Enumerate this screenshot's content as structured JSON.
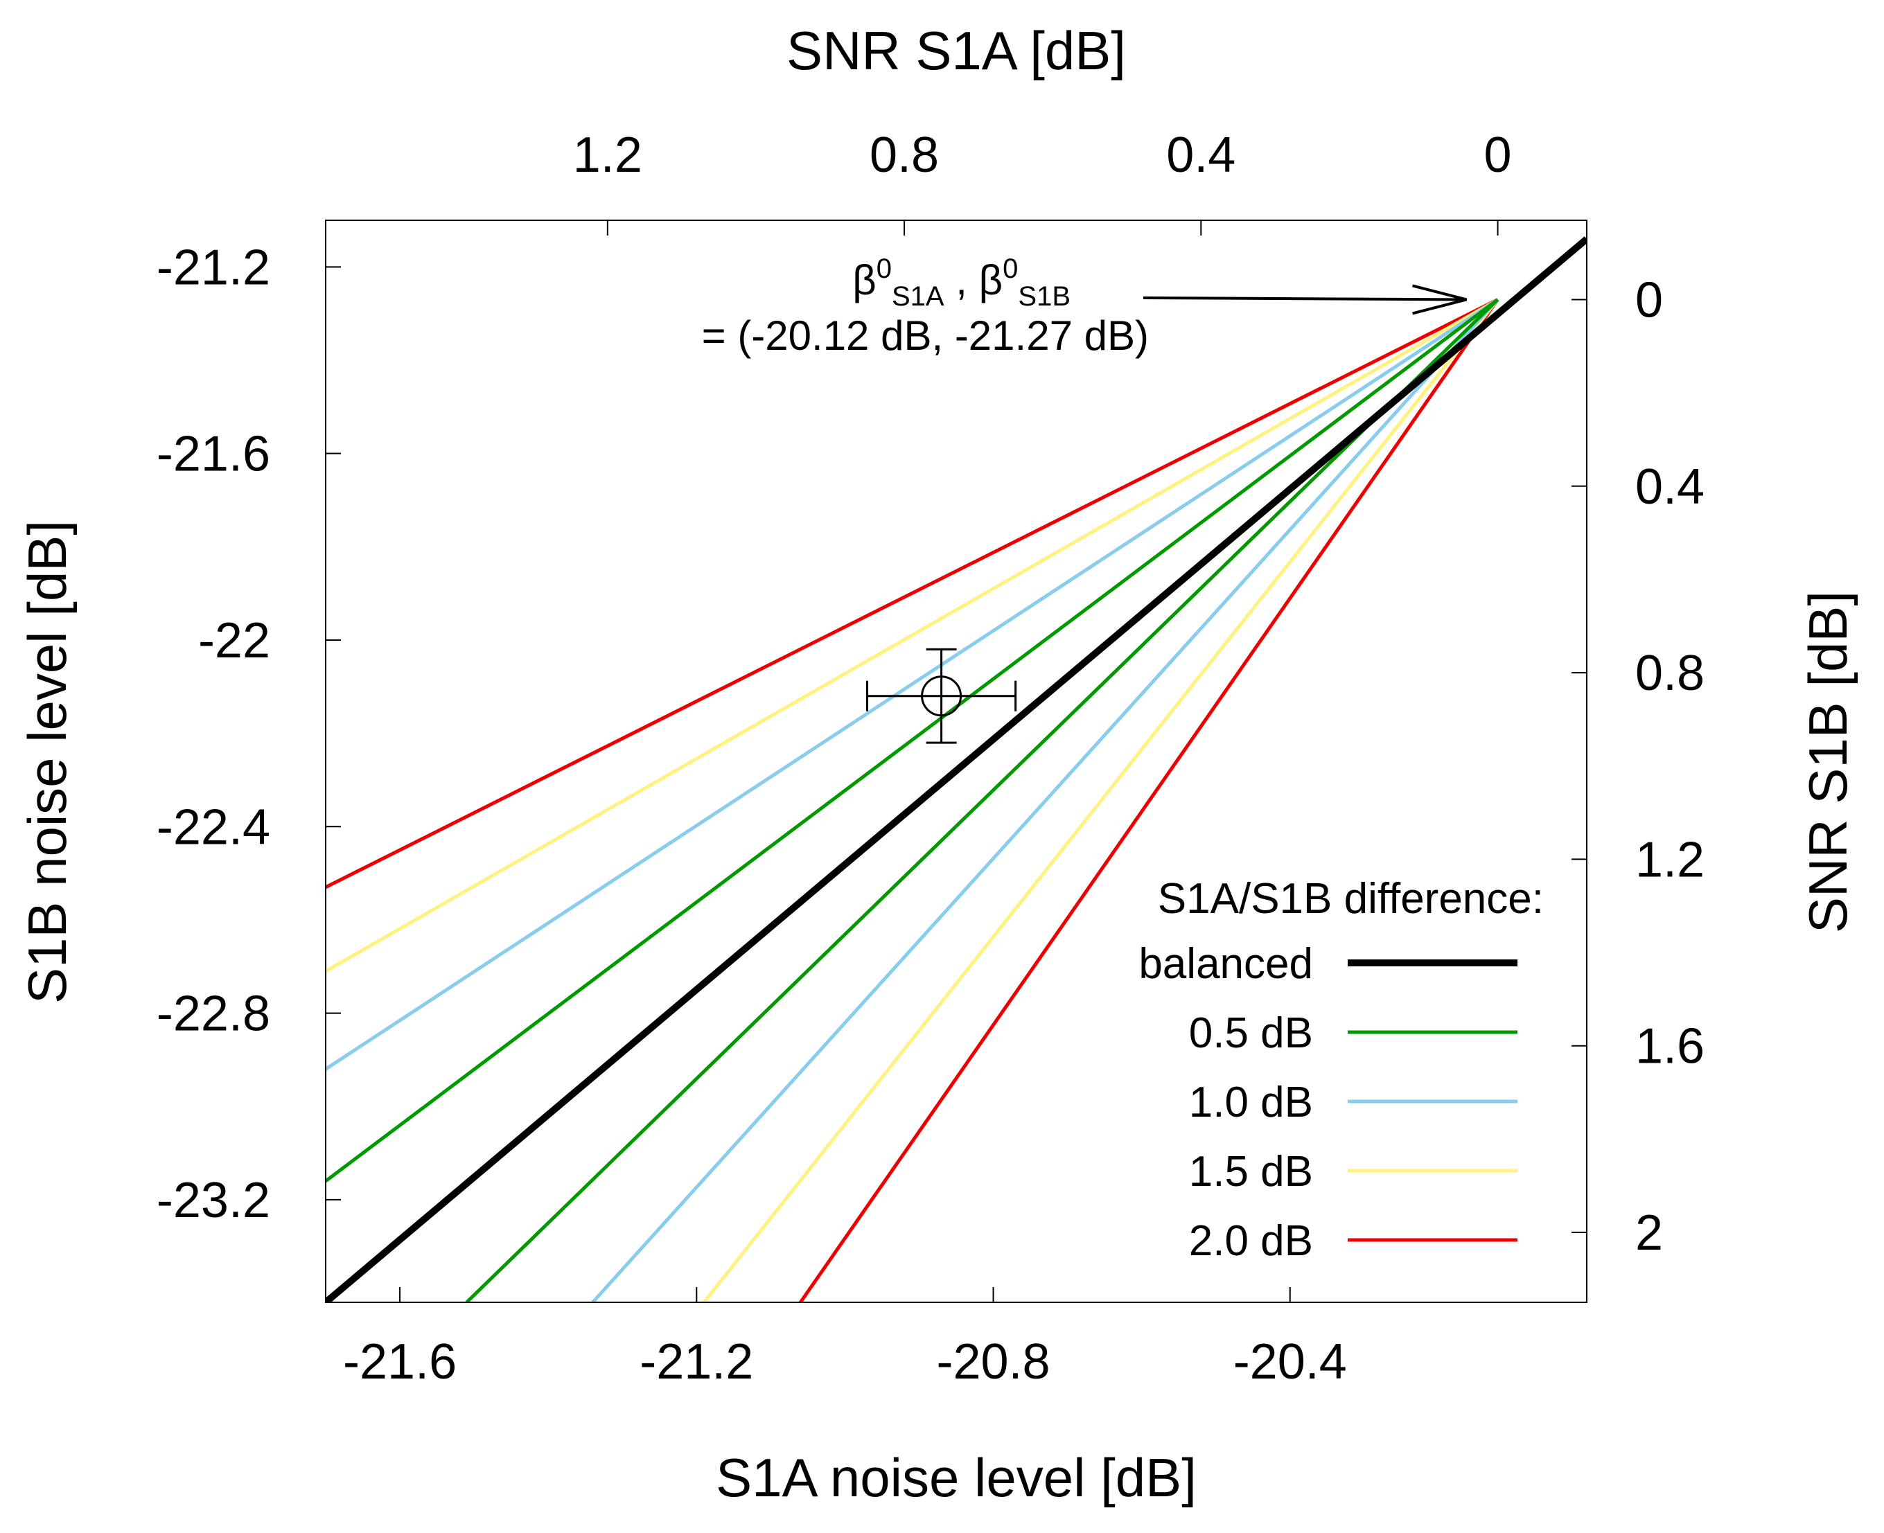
{
  "chart_data": {
    "type": "line",
    "xlabel": "S1A  noise level [dB]",
    "ylabel": "S1B  noise level [dB]",
    "x2label": "SNR  S1A [dB]",
    "y2label": "SNR  S1B [dB]",
    "xlim": [
      -21.7,
      -20.0
    ],
    "ylim": [
      -23.42,
      -21.1
    ],
    "xticks": [
      -21.6,
      -21.2,
      -20.8,
      -20.4
    ],
    "xtick_labels": [
      "-21.6",
      "-21.2",
      "-20.8",
      "-20.4"
    ],
    "yticks": [
      -21.2,
      -21.6,
      -22.0,
      -22.4,
      -22.8,
      -23.2
    ],
    "ytick_labels": [
      "-21.2",
      "-21.6",
      "-22",
      "-22.4",
      "-22.8",
      "-23.2"
    ],
    "x2ticks_snr": [
      1.2,
      0.8,
      0.4,
      0
    ],
    "x2tick_labels": [
      "1.2",
      "0.8",
      "0.4",
      "0"
    ],
    "y2ticks_snr": [
      0,
      0.4,
      0.8,
      1.2,
      1.6,
      2
    ],
    "y2tick_labels": [
      "0",
      "0.4",
      "0.8",
      "1.2",
      "1.6",
      "2"
    ],
    "reference_point": {
      "x": -20.12,
      "y": -21.27
    },
    "annotation": {
      "beta": "β",
      "zero": "0",
      "sub_a": "S1A",
      "sep": " , ",
      "sub_b": "S1B",
      "line2": "= (-20.12 dB, -21.27 dB)"
    },
    "measurement": {
      "x": -20.87,
      "y": -22.12,
      "x_err": 0.1,
      "y_err": 0.1
    },
    "legend_title": "S1A/S1B difference:",
    "series": [
      {
        "name": "balanced",
        "color": "#000000",
        "width": 10,
        "x": [
          -21.7,
          -20.0
        ],
        "y": [
          -23.42,
          -21.14
        ]
      },
      {
        "name": "0.5 dB",
        "color": "#009900",
        "width": 5,
        "upper": {
          "x": [
            -21.7,
            -20.12
          ],
          "y": [
            -23.16,
            -21.27
          ]
        },
        "lower": {
          "x": [
            -21.51,
            -20.12
          ],
          "y": [
            -23.42,
            -21.27
          ]
        }
      },
      {
        "name": "1.0 dB",
        "color": "#88CCEE",
        "width": 5,
        "upper": {
          "x": [
            -21.7,
            -20.12
          ],
          "y": [
            -22.92,
            -21.27
          ]
        },
        "lower": {
          "x": [
            -21.34,
            -20.12
          ],
          "y": [
            -23.42,
            -21.27
          ]
        }
      },
      {
        "name": "1.5 dB",
        "color": "#FFF280",
        "width": 5,
        "upper": {
          "x": [
            -21.7,
            -20.12
          ],
          "y": [
            -22.71,
            -21.27
          ]
        },
        "lower": {
          "x": [
            -21.19,
            -20.12
          ],
          "y": [
            -23.42,
            -21.27
          ]
        }
      },
      {
        "name": "2.0 dB",
        "color": "#EE0000",
        "width": 5,
        "upper": {
          "x": [
            -21.7,
            -20.12
          ],
          "y": [
            -22.53,
            -21.27
          ]
        },
        "lower": {
          "x": [
            -21.06,
            -20.12
          ],
          "y": [
            -23.42,
            -21.27
          ]
        }
      }
    ]
  }
}
